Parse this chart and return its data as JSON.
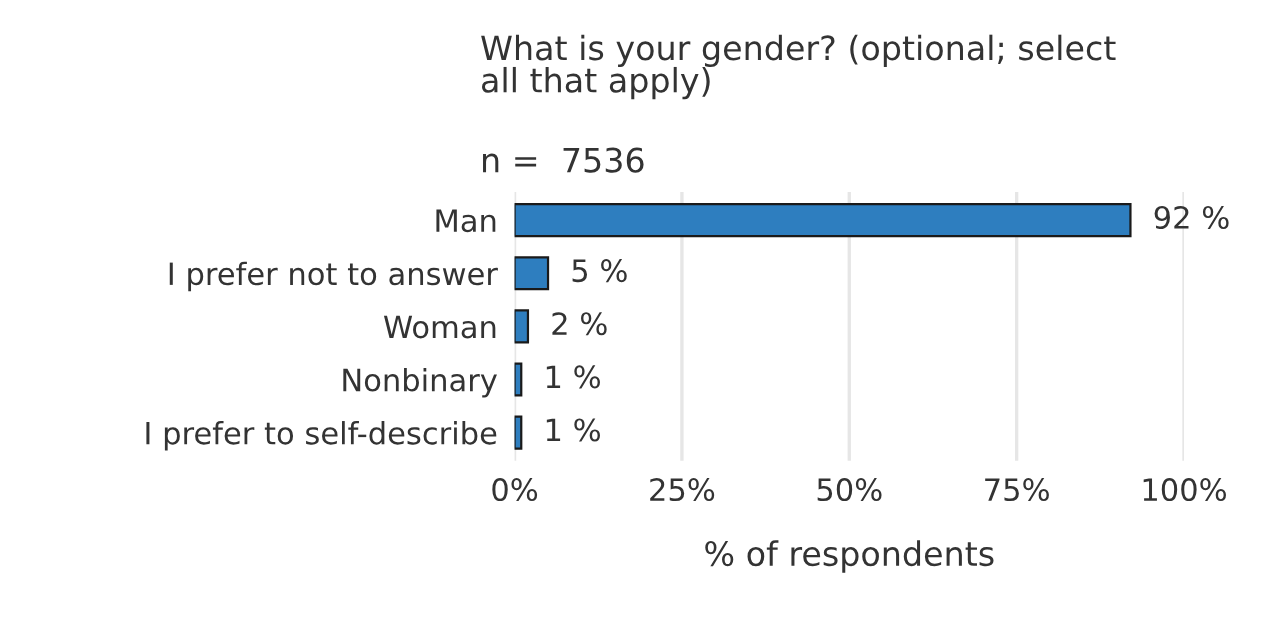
{
  "chart_data": {
    "type": "bar",
    "orientation": "horizontal",
    "title": "What is your gender? (optional; select\nall that apply)",
    "subtitle": "n =  7536",
    "xlabel": "% of respondents",
    "categories": [
      "Man",
      "I prefer not to answer",
      "Woman",
      "Nonbinary",
      "I prefer to self-describe"
    ],
    "values": [
      92,
      5,
      2,
      1,
      1
    ],
    "value_labels": [
      "92 %",
      "5 %",
      "2 %",
      "1 %",
      "1 %"
    ],
    "color": "#2e7ebf",
    "xlim": [
      0,
      100
    ],
    "xticks": [
      {
        "value": 0,
        "label": "0%"
      },
      {
        "value": 25,
        "label": "25%"
      },
      {
        "value": 50,
        "label": "50%"
      },
      {
        "value": 75,
        "label": "75%"
      },
      {
        "value": 100,
        "label": "100%"
      }
    ],
    "grid": "x"
  }
}
